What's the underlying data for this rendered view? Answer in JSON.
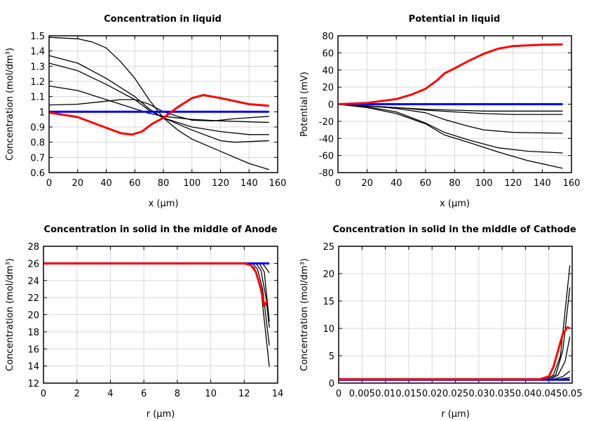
{
  "chart_data": [
    {
      "type": "line",
      "title": "Concentration in liquid",
      "xlabel": "x (µm)",
      "ylabel": "Concentration (mol/dm³)",
      "xlim": [
        0,
        160
      ],
      "ylim": [
        0.6,
        1.5
      ],
      "xticks": [
        "0",
        "20",
        "40",
        "60",
        "80",
        "100",
        "120",
        "140",
        "160"
      ],
      "yticks": [
        "0.6",
        "0.7",
        "0.8",
        "0.9",
        "1",
        "1.1",
        "1.2",
        "1.3",
        "1.4",
        "1.5"
      ],
      "grid": true,
      "series": [
        {
          "color": "#000000",
          "points": [
            [
              0,
              1.49
            ],
            [
              20,
              1.48
            ],
            [
              30,
              1.46
            ],
            [
              40,
              1.42
            ],
            [
              50,
              1.33
            ],
            [
              60,
              1.22
            ],
            [
              70,
              1.08
            ],
            [
              80,
              0.96
            ],
            [
              90,
              0.88
            ],
            [
              100,
              0.82
            ],
            [
              120,
              0.74
            ],
            [
              140,
              0.66
            ],
            [
              154,
              0.62
            ]
          ]
        },
        {
          "color": "#000000",
          "points": [
            [
              0,
              1.37
            ],
            [
              20,
              1.32
            ],
            [
              40,
              1.22
            ],
            [
              60,
              1.1
            ],
            [
              70,
              1.02
            ],
            [
              80,
              0.96
            ],
            [
              100,
              0.88
            ],
            [
              120,
              0.81
            ],
            [
              130,
              0.8
            ],
            [
              154,
              0.81
            ]
          ]
        },
        {
          "color": "#000000",
          "points": [
            [
              0,
              1.32
            ],
            [
              20,
              1.27
            ],
            [
              40,
              1.18
            ],
            [
              60,
              1.08
            ],
            [
              70,
              1.01
            ],
            [
              80,
              0.96
            ],
            [
              100,
              0.9
            ],
            [
              120,
              0.87
            ],
            [
              140,
              0.85
            ],
            [
              154,
              0.85
            ]
          ]
        },
        {
          "color": "#000000",
          "points": [
            [
              0,
              1.17
            ],
            [
              20,
              1.14
            ],
            [
              40,
              1.08
            ],
            [
              60,
              1.02
            ],
            [
              70,
              0.99
            ],
            [
              80,
              0.97
            ],
            [
              100,
              0.95
            ],
            [
              120,
              0.94
            ],
            [
              154,
              0.93
            ]
          ]
        },
        {
          "color": "#000000",
          "points": [
            [
              0,
              1.045
            ],
            [
              20,
              1.05
            ],
            [
              40,
              1.07
            ],
            [
              50,
              1.08
            ],
            [
              60,
              1.08
            ],
            [
              70,
              1.05
            ],
            [
              80,
              1.0
            ],
            [
              90,
              0.97
            ],
            [
              100,
              0.945
            ],
            [
              115,
              0.94
            ],
            [
              130,
              0.955
            ],
            [
              154,
              0.97
            ]
          ]
        },
        {
          "color": "#0000ff",
          "points": [
            [
              0,
              1.0
            ],
            [
              154,
              1.0
            ]
          ]
        },
        {
          "color": "#ff0000",
          "points": [
            [
              0,
              0.995
            ],
            [
              20,
              0.965
            ],
            [
              40,
              0.895
            ],
            [
              50,
              0.86
            ],
            [
              58,
              0.85
            ],
            [
              65,
              0.87
            ],
            [
              72,
              0.92
            ],
            [
              80,
              0.96
            ],
            [
              90,
              1.03
            ],
            [
              100,
              1.09
            ],
            [
              108,
              1.11
            ],
            [
              120,
              1.09
            ],
            [
              140,
              1.05
            ],
            [
              154,
              1.04
            ]
          ]
        }
      ]
    },
    {
      "type": "line",
      "title": "Potential in liquid",
      "xlabel": "x (µm)",
      "ylabel": "Potential (mV)",
      "xlim": [
        0,
        160
      ],
      "ylim": [
        -80,
        80
      ],
      "xticks": [
        "0",
        "20",
        "40",
        "60",
        "80",
        "100",
        "120",
        "140",
        "160"
      ],
      "yticks": [
        "-80",
        "-60",
        "-40",
        "-20",
        "0",
        "20",
        "40",
        "60",
        "80"
      ],
      "grid": true,
      "series": [
        {
          "color": "#000000",
          "points": [
            [
              0,
              0
            ],
            [
              20,
              -2
            ],
            [
              40,
              -4
            ],
            [
              60,
              -6
            ],
            [
              80,
              -7
            ],
            [
              100,
              -8
            ],
            [
              154,
              -8
            ]
          ]
        },
        {
          "color": "#000000",
          "points": [
            [
              0,
              0
            ],
            [
              20,
              -2
            ],
            [
              40,
              -4
            ],
            [
              60,
              -7
            ],
            [
              80,
              -9
            ],
            [
              100,
              -11
            ],
            [
              120,
              -12
            ],
            [
              154,
              -12
            ]
          ]
        },
        {
          "color": "#000000",
          "points": [
            [
              0,
              0
            ],
            [
              20,
              -2
            ],
            [
              40,
              -5
            ],
            [
              60,
              -10
            ],
            [
              73,
              -18
            ],
            [
              90,
              -26
            ],
            [
              100,
              -30
            ],
            [
              120,
              -33
            ],
            [
              154,
              -34
            ]
          ]
        },
        {
          "color": "#000000",
          "points": [
            [
              0,
              0
            ],
            [
              20,
              -3
            ],
            [
              40,
              -9
            ],
            [
              60,
              -22
            ],
            [
              73,
              -33
            ],
            [
              90,
              -42
            ],
            [
              110,
              -51
            ],
            [
              130,
              -55
            ],
            [
              154,
              -57
            ]
          ]
        },
        {
          "color": "#000000",
          "points": [
            [
              0,
              0
            ],
            [
              20,
              -4
            ],
            [
              40,
              -11
            ],
            [
              60,
              -23
            ],
            [
              73,
              -36
            ],
            [
              90,
              -45
            ],
            [
              110,
              -56
            ],
            [
              130,
              -66
            ],
            [
              154,
              -75
            ]
          ]
        },
        {
          "color": "#0000ff",
          "points": [
            [
              0,
              0
            ],
            [
              154,
              0
            ]
          ]
        },
        {
          "color": "#ff0000",
          "points": [
            [
              0,
              0
            ],
            [
              20,
              1.5
            ],
            [
              40,
              6
            ],
            [
              50,
              11
            ],
            [
              60,
              18
            ],
            [
              68,
              28
            ],
            [
              73,
              36
            ],
            [
              80,
              42
            ],
            [
              90,
              51
            ],
            [
              100,
              59
            ],
            [
              110,
              65
            ],
            [
              120,
              68
            ],
            [
              140,
              69.5
            ],
            [
              154,
              70
            ]
          ]
        }
      ]
    },
    {
      "type": "line",
      "title": "Concentration in solid in the middle of Anode",
      "xlabel": "r (µm)",
      "ylabel": "Concentration (mol/dm³)",
      "xlim": [
        0,
        14
      ],
      "ylim": [
        12,
        28
      ],
      "xticks": [
        "0",
        "2",
        "4",
        "6",
        "8",
        "10",
        "12",
        "14"
      ],
      "yticks": [
        "12",
        "14",
        "16",
        "18",
        "20",
        "22",
        "24",
        "26",
        "28"
      ],
      "grid": true,
      "series": [
        {
          "color": "#000000",
          "points": [
            [
              0,
              26
            ],
            [
              12.2,
              26
            ],
            [
              12.6,
              25.5
            ],
            [
              13,
              23
            ],
            [
              13.5,
              13.9
            ]
          ]
        },
        {
          "color": "#000000",
          "points": [
            [
              0,
              26
            ],
            [
              12.5,
              26
            ],
            [
              12.8,
              25.3
            ],
            [
              13.1,
              23
            ],
            [
              13.5,
              16.4
            ]
          ]
        },
        {
          "color": "#000000",
          "points": [
            [
              0,
              26
            ],
            [
              12.7,
              26
            ],
            [
              13,
              25.2
            ],
            [
              13.3,
              22
            ],
            [
              13.5,
              18.5
            ]
          ]
        },
        {
          "color": "#000000",
          "points": [
            [
              0,
              26
            ],
            [
              12.9,
              26
            ],
            [
              13.2,
              25
            ],
            [
              13.5,
              19.2
            ]
          ]
        },
        {
          "color": "#000000",
          "points": [
            [
              0,
              26
            ],
            [
              13.1,
              26
            ],
            [
              13.5,
              24.9
            ]
          ]
        },
        {
          "color": "#0000ff",
          "points": [
            [
              0,
              26
            ],
            [
              13.5,
              26
            ]
          ]
        },
        {
          "color": "#ff0000",
          "points": [
            [
              0,
              26
            ],
            [
              12,
              26
            ],
            [
              12.4,
              25.8
            ],
            [
              12.7,
              25
            ],
            [
              13,
              23
            ],
            [
              13.2,
              21
            ],
            [
              13.4,
              21.8
            ]
          ]
        }
      ]
    },
    {
      "type": "line",
      "title": "Concentration in solid in the middle of Cathode",
      "xlabel": "r (µm)",
      "ylabel": "Concentration (mol/dm³)",
      "xlim": [
        0,
        0.05
      ],
      "ylim": [
        0,
        25
      ],
      "xticks": [
        "0",
        "0.005",
        "0.01",
        "0.015",
        "0.02",
        "0.025",
        "0.03",
        "0.035",
        "0.04",
        "0.045",
        "0.05"
      ],
      "yticks": [
        "0",
        "5",
        "10",
        "15",
        "20",
        "25"
      ],
      "grid": true,
      "series": [
        {
          "color": "#000000",
          "points": [
            [
              0,
              0.7
            ],
            [
              0.0445,
              0.7
            ],
            [
              0.046,
              1.5
            ],
            [
              0.0475,
              5
            ],
            [
              0.0495,
              21.5
            ]
          ]
        },
        {
          "color": "#000000",
          "points": [
            [
              0,
              0.7
            ],
            [
              0.045,
              0.7
            ],
            [
              0.0465,
              1.5
            ],
            [
              0.048,
              6
            ],
            [
              0.0495,
              17.5
            ]
          ]
        },
        {
          "color": "#000000",
          "points": [
            [
              0,
              0.7
            ],
            [
              0.0455,
              0.7
            ],
            [
              0.047,
              1.5
            ],
            [
              0.0485,
              4
            ],
            [
              0.0495,
              8.5
            ]
          ]
        },
        {
          "color": "#000000",
          "points": [
            [
              0,
              0.7
            ],
            [
              0.046,
              0.7
            ],
            [
              0.048,
              1.2
            ],
            [
              0.0495,
              2.2
            ]
          ]
        },
        {
          "color": "#000000",
          "points": [
            [
              0,
              0.7
            ],
            [
              0.047,
              0.7
            ],
            [
              0.0495,
              1.0
            ]
          ]
        },
        {
          "color": "#0000ff",
          "points": [
            [
              0,
              0.6
            ],
            [
              0.0495,
              0.6
            ]
          ]
        },
        {
          "color": "#ff0000",
          "points": [
            [
              0,
              0.7
            ],
            [
              0.043,
              0.7
            ],
            [
              0.045,
              1.2
            ],
            [
              0.046,
              3
            ],
            [
              0.047,
              6
            ],
            [
              0.048,
              9
            ],
            [
              0.049,
              10.2
            ],
            [
              0.0495,
              10
            ]
          ]
        }
      ]
    }
  ]
}
